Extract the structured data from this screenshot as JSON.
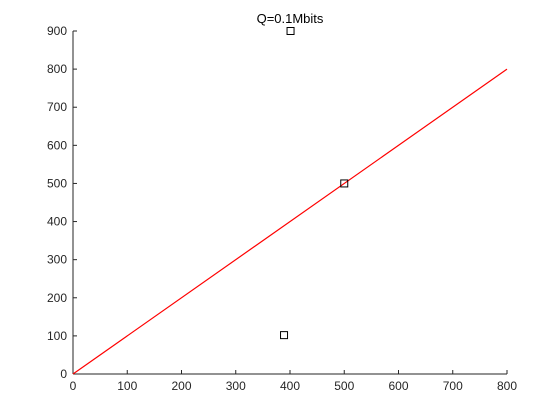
{
  "chart_data": {
    "type": "scatter",
    "title": "Q=0.1Mbits",
    "xlabel": "",
    "ylabel": "",
    "xlim": [
      0,
      800
    ],
    "ylim": [
      0,
      900
    ],
    "xticks": [
      0,
      100,
      200,
      300,
      400,
      500,
      600,
      700,
      800
    ],
    "yticks": [
      0,
      100,
      200,
      300,
      400,
      500,
      600,
      700,
      800,
      900
    ],
    "grid": false,
    "legend": "none",
    "points": [
      {
        "x": 401,
        "y": 900
      },
      {
        "x": 500,
        "y": 500
      },
      {
        "x": 389,
        "y": 102
      }
    ],
    "marker": "square",
    "marker_color": "#000000",
    "reference_line": {
      "x": [
        0,
        800
      ],
      "y": [
        0,
        800
      ],
      "color": "#ff0000"
    },
    "axis_color": "#262626"
  }
}
